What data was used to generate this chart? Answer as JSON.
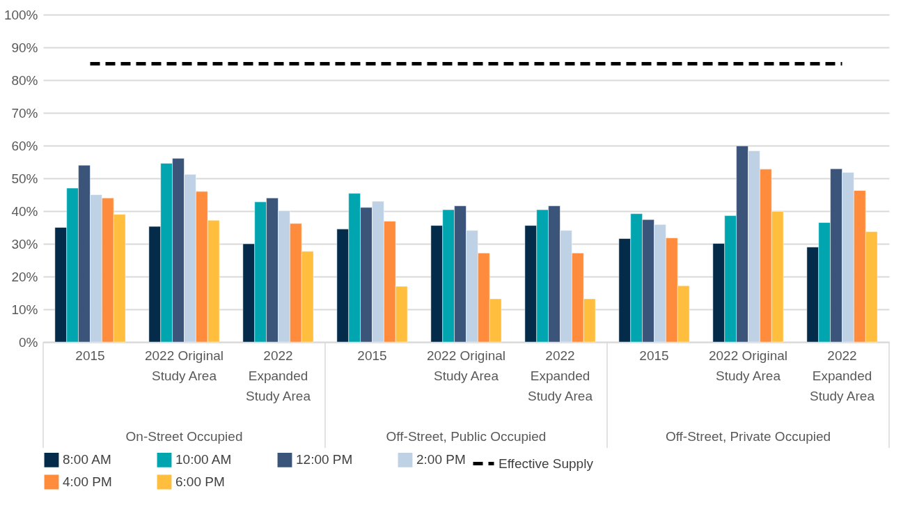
{
  "chart_data": {
    "type": "bar",
    "categories": [
      "2015",
      "2022 Original\nStudy Area",
      "2022\nExpanded\nStudy Area",
      "2015",
      "2022 Original\nStudy Area",
      "2022\nExpanded\nStudy Area",
      "2015",
      "2022 Original\nStudy Area",
      "2022\nExpanded\nStudy Area"
    ],
    "annotations": [
      "On-Street Occupied",
      "Off-Street, Public Occupied",
      "Off-Street, Private Occupied"
    ],
    "series": [
      {
        "name": "8:00 AM",
        "color": "#042c4a",
        "values": [
          35,
          35.3,
          30,
          34.5,
          35.6,
          35.6,
          31.6,
          30.1,
          29
        ]
      },
      {
        "name": "10:00 AM",
        "color": "#00a5b0",
        "values": [
          47,
          54.6,
          42.8,
          45.4,
          40.4,
          40.4,
          39.2,
          38.6,
          36.5
        ]
      },
      {
        "name": "12:00 PM",
        "color": "#3b5479",
        "values": [
          54,
          56.1,
          44,
          41.1,
          41.6,
          41.6,
          37.4,
          59.9,
          52.9
        ]
      },
      {
        "name": "2:00 PM",
        "color": "#bfd1e5",
        "values": [
          45,
          51.2,
          40.1,
          43,
          34.1,
          34.1,
          35.9,
          58.4,
          51.8
        ]
      },
      {
        "name": "4:00 PM",
        "color": "#ff8c3c",
        "values": [
          44,
          46,
          36.2,
          36.9,
          27.2,
          27.2,
          31.8,
          52.8,
          46.3
        ]
      },
      {
        "name": "6:00 PM",
        "color": "#ffbe3e",
        "values": [
          39,
          37.2,
          27.7,
          17,
          13.2,
          13.2,
          17.2,
          39.9,
          33.7
        ]
      },
      {
        "name": "Effective Supply",
        "type": "line",
        "color": "#000000",
        "line_style": "dashed",
        "values": [
          85,
          85,
          85,
          85,
          85,
          85,
          85,
          85,
          85
        ]
      }
    ],
    "ylim": [
      0,
      100
    ],
    "yticks": [
      {
        "value": 0,
        "label": "0%"
      },
      {
        "value": 10,
        "label": "10%"
      },
      {
        "value": 20,
        "label": "20%"
      },
      {
        "value": 30,
        "label": "30%"
      },
      {
        "value": 40,
        "label": "40%"
      },
      {
        "value": 50,
        "label": "50%"
      },
      {
        "value": 60,
        "label": "60%"
      },
      {
        "value": 70,
        "label": "70%"
      },
      {
        "value": 80,
        "label": "80%"
      },
      {
        "value": 90,
        "label": "90%"
      },
      {
        "value": 100,
        "label": "100%"
      }
    ],
    "grid": "y",
    "legend": "bottom"
  }
}
